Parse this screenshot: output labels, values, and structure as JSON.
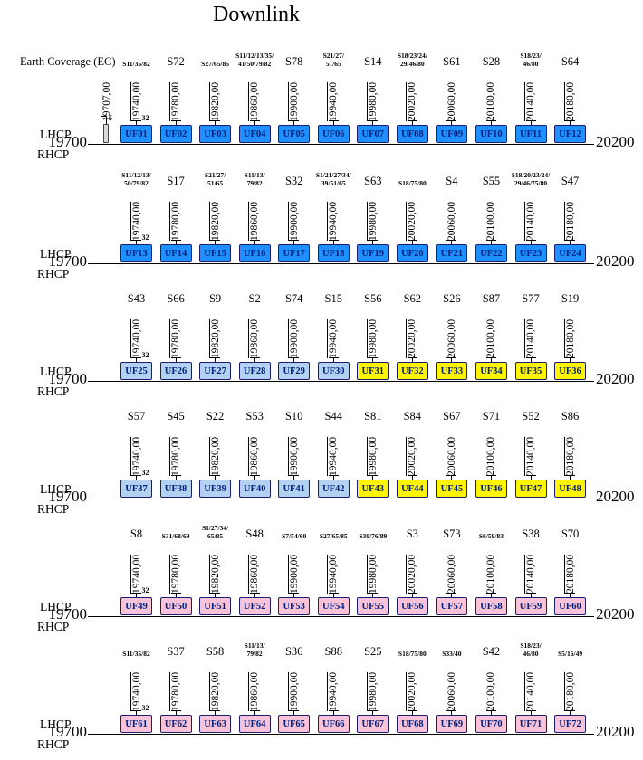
{
  "title": "Downlink",
  "axis": {
    "left_label": "19700",
    "right_label": "20200"
  },
  "polarization": {
    "top": "LHCP",
    "bottom": "RHCP"
  },
  "bandwidth_marker": "32",
  "earth_coverage": {
    "label": "Earth Coverage (EC)",
    "frequency": "19707,00",
    "bandwidth": "5"
  },
  "frequencies": [
    "19740,00",
    "19780,00",
    "19820,00",
    "19860,00",
    "19900,00",
    "19940,00",
    "19980,00",
    "20020,00",
    "20060,00",
    "20100,00",
    "20140,00",
    "20180,00"
  ],
  "colors": {
    "blue": "#1e90ff",
    "lightblue": "#b3d1f0",
    "yellow": "#fff500",
    "pink": "#f8c3d8",
    "box_text": "#00217d",
    "ec_fill": "#d9d9d9"
  },
  "rows": [
    {
      "satellites": [
        "S11/35/82",
        "S72",
        "S27/65/85",
        "S11/12/13/35/\n41/50/79/82",
        "S78",
        "S21/27/\n51/65",
        "S14",
        "S18/23/24/\n29/46/80",
        "S61",
        "S28",
        "S18/23/\n46/80",
        "S64"
      ],
      "boxes": [
        "UF01",
        "UF02",
        "UF03",
        "UF04",
        "UF05",
        "UF06",
        "UF07",
        "UF08",
        "UF09",
        "UF10",
        "UF11",
        "UF12"
      ],
      "box_colors": [
        "blue",
        "blue",
        "blue",
        "blue",
        "blue",
        "blue",
        "blue",
        "blue",
        "blue",
        "blue",
        "blue",
        "blue"
      ]
    },
    {
      "satellites": [
        "S11/12/13/\n50/79/82",
        "S17",
        "S21/27/\n51/65",
        "S11/13/\n79/82",
        "S32",
        "S1/21/27/34/\n39/51/65",
        "S63",
        "S18/75/80",
        "S4",
        "S55",
        "S18/20/23/24/\n29/46/75/80",
        "S47"
      ],
      "boxes": [
        "UF13",
        "UF14",
        "UF15",
        "UF16",
        "UF17",
        "UF18",
        "UF19",
        "UF20",
        "UF21",
        "UF22",
        "UF23",
        "UF24"
      ],
      "box_colors": [
        "blue",
        "blue",
        "blue",
        "blue",
        "blue",
        "blue",
        "blue",
        "blue",
        "blue",
        "blue",
        "blue",
        "blue"
      ]
    },
    {
      "satellites": [
        "S43",
        "S66",
        "S9",
        "S2",
        "S74",
        "S15",
        "S56",
        "S62",
        "S26",
        "S87",
        "S77",
        "S19"
      ],
      "boxes": [
        "UF25",
        "UF26",
        "UF27",
        "UF28",
        "UF29",
        "UF30",
        "UF31",
        "UF32",
        "UF33",
        "UF34",
        "UF35",
        "UF36"
      ],
      "box_colors": [
        "lightblue",
        "lightblue",
        "lightblue",
        "lightblue",
        "lightblue",
        "lightblue",
        "yellow",
        "yellow",
        "yellow",
        "yellow",
        "yellow",
        "yellow"
      ]
    },
    {
      "satellites": [
        "S57",
        "S45",
        "S22",
        "S53",
        "S10",
        "S44",
        "S81",
        "S84",
        "S67",
        "S71",
        "S52",
        "S86"
      ],
      "boxes": [
        "UF37",
        "UF38",
        "UF39",
        "UF40",
        "UF41",
        "UF42",
        "UF43",
        "UF44",
        "UF45",
        "UF46",
        "UF47",
        "UF48"
      ],
      "box_colors": [
        "lightblue",
        "lightblue",
        "lightblue",
        "lightblue",
        "lightblue",
        "lightblue",
        "yellow",
        "yellow",
        "yellow",
        "yellow",
        "yellow",
        "yellow"
      ]
    },
    {
      "satellites": [
        "S8",
        "S31/68/69",
        "S1/27/34/\n65/85",
        "S48",
        "S7/54/60",
        "S27/65/85",
        "S30/76/89",
        "S3",
        "S73",
        "S6/59/83",
        "S38",
        "S70"
      ],
      "boxes": [
        "UF49",
        "UF50",
        "UF51",
        "UF52",
        "UF53",
        "UF54",
        "UF55",
        "UF56",
        "UF57",
        "UF58",
        "UF59",
        "UF60"
      ],
      "box_colors": [
        "pink",
        "pink",
        "pink",
        "pink",
        "pink",
        "pink",
        "pink",
        "pink",
        "pink",
        "pink",
        "pink",
        "pink"
      ]
    },
    {
      "satellites": [
        "S11/35/82",
        "S37",
        "S58",
        "S11/13/\n79/82",
        "S36",
        "S88",
        "S25",
        "S18/75/80",
        "S33/40",
        "S42",
        "S18/23/\n46/80",
        "S5/16/49"
      ],
      "boxes": [
        "UF61",
        "UF62",
        "UF63",
        "UF64",
        "UF65",
        "UF66",
        "UF67",
        "UF68",
        "UF69",
        "UF70",
        "UF71",
        "UF72"
      ],
      "box_colors": [
        "pink",
        "pink",
        "pink",
        "pink",
        "pink",
        "pink",
        "pink",
        "pink",
        "pink",
        "pink",
        "pink",
        "pink"
      ]
    }
  ]
}
